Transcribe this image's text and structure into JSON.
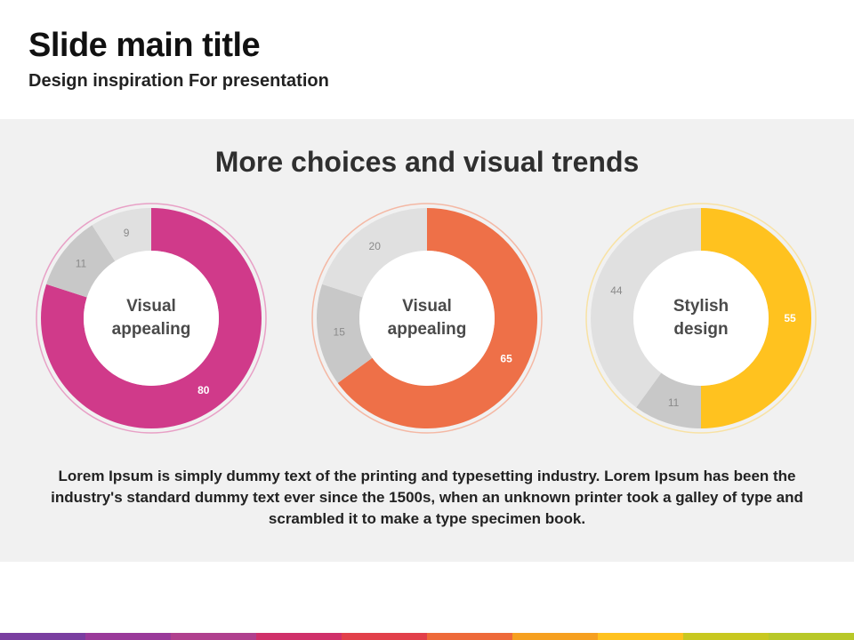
{
  "slide": {
    "title": "Slide main title",
    "subtitle": "Design inspiration For presentation"
  },
  "panel": {
    "heading": "More choices and visual trends",
    "body": "Lorem Ipsum is simply dummy text of the printing and typesetting industry. Lorem Ipsum has been the industry's standard dummy text ever since the 1500s, when an unknown printer took a galley of type and scrambled it to make a type specimen book."
  },
  "chart_data": [
    {
      "type": "pie",
      "center_label": [
        "Visual",
        "appealing"
      ],
      "values": [
        80,
        11,
        9
      ],
      "labels": [
        "80",
        "11",
        "9"
      ],
      "colors": [
        "#d03a8a",
        "#c8c8c8",
        "#e0e0e0"
      ],
      "ring_color": "#e8a0c6"
    },
    {
      "type": "pie",
      "center_label": [
        "Visual",
        "appealing"
      ],
      "values": [
        65,
        15,
        20
      ],
      "labels": [
        "65",
        "15",
        "20"
      ],
      "colors": [
        "#ee7048",
        "#c8c8c8",
        "#e0e0e0"
      ],
      "ring_color": "#f4b8a4"
    },
    {
      "type": "pie",
      "center_label": [
        "Stylish",
        "design"
      ],
      "values": [
        55,
        11,
        44
      ],
      "labels": [
        "55",
        "11",
        "44"
      ],
      "colors": [
        "#ffc21f",
        "#c8c8c8",
        "#e0e0e0"
      ],
      "ring_color": "#f8e2a4"
    }
  ],
  "footer_stripe_colors": [
    "#7a3ea0",
    "#9a3a9a",
    "#b0408e",
    "#d0306a",
    "#e2404a",
    "#ee6a3a",
    "#f6a020",
    "#ffc21f",
    "#c8c820",
    "#b8c828"
  ]
}
